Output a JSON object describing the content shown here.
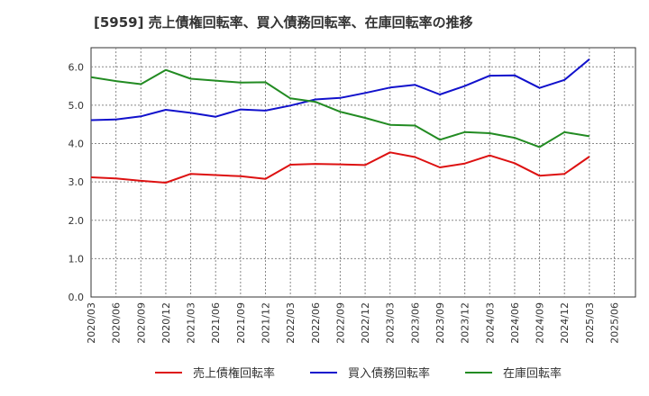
{
  "chart_data": {
    "type": "line",
    "title": "[5959]  売上債権回転率、買入債務回転率、在庫回転率の推移",
    "xlabel": "",
    "ylabel": "",
    "ylim": [
      0,
      6.5
    ],
    "yticks": [
      "0.0",
      "1.0",
      "2.0",
      "3.0",
      "4.0",
      "5.0",
      "6.0"
    ],
    "grid": true,
    "legend": "bottom",
    "categories": [
      "2020/03",
      "2020/06",
      "2020/09",
      "2020/12",
      "2021/03",
      "2021/06",
      "2021/09",
      "2021/12",
      "2022/03",
      "2022/06",
      "2022/09",
      "2022/12",
      "2023/03",
      "2023/06",
      "2023/09",
      "2023/12",
      "2024/03",
      "2024/06",
      "2024/09",
      "2024/12",
      "2025/03",
      "2025/06"
    ],
    "series": [
      {
        "name": "売上債権回転率",
        "color": "#dd1111",
        "values": [
          3.12,
          3.09,
          3.03,
          2.98,
          3.21,
          3.18,
          3.15,
          3.08,
          3.45,
          3.47,
          3.46,
          3.44,
          3.77,
          3.65,
          3.38,
          3.48,
          3.69,
          3.49,
          3.16,
          3.21,
          3.66,
          null
        ]
      },
      {
        "name": "買入債務回転率",
        "color": "#1111cc",
        "values": [
          4.61,
          4.63,
          4.71,
          4.88,
          4.8,
          4.7,
          4.89,
          4.86,
          4.99,
          5.15,
          5.19,
          5.32,
          5.46,
          5.53,
          5.28,
          5.5,
          5.77,
          5.78,
          5.45,
          5.66,
          6.2,
          null
        ]
      },
      {
        "name": "在庫回転率",
        "color": "#228b22",
        "values": [
          5.73,
          5.63,
          5.55,
          5.92,
          5.69,
          5.64,
          5.59,
          5.6,
          5.18,
          5.09,
          4.83,
          4.67,
          4.49,
          4.47,
          4.1,
          4.3,
          4.27,
          4.15,
          3.91,
          4.3,
          4.19,
          null
        ]
      }
    ]
  }
}
